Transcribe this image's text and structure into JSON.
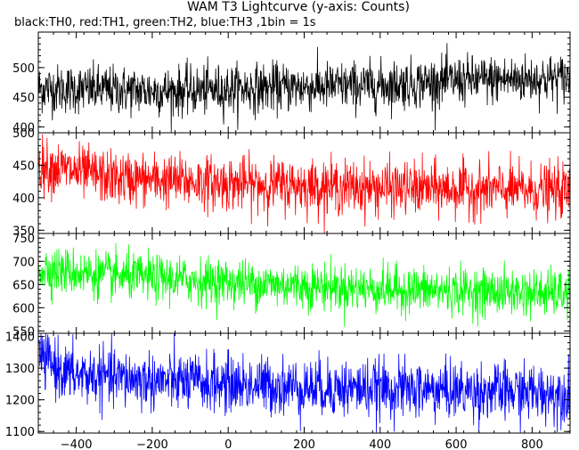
{
  "chart_data": {
    "type": "line",
    "title": "WAM T3 Lightcurve (y-axis: Counts)",
    "subtitle": "black:TH0, red:TH1, green:TH2, blue:TH3 ,1bin = 1s",
    "xlim": [
      -500,
      900
    ],
    "x_ticks": [
      -400,
      -200,
      0,
      200,
      400,
      600,
      800
    ],
    "x_tick_labels": [
      "−400",
      "−200",
      "0",
      "200",
      "400",
      "600",
      "800"
    ],
    "bin_seconds": 1,
    "grid": false,
    "panels": [
      {
        "series": "TH0",
        "color": "#000000",
        "ylim": [
          390,
          560
        ],
        "y_ticks": [
          400,
          450,
          500
        ],
        "trend_points": [
          [
            -500,
            465
          ],
          [
            -150,
            460
          ],
          [
            100,
            466
          ],
          [
            400,
            470
          ],
          [
            600,
            478
          ],
          [
            900,
            482
          ]
        ],
        "noise_range": 45
      },
      {
        "series": "TH1",
        "color": "#ff0000",
        "ylim": [
          345,
          500
        ],
        "y_ticks": [
          350,
          400,
          450,
          500
        ],
        "trend_points": [
          [
            -500,
            450
          ],
          [
            -300,
            430
          ],
          [
            0,
            422
          ],
          [
            400,
            415
          ],
          [
            900,
            410
          ]
        ],
        "noise_range": 45
      },
      {
        "series": "TH2",
        "color": "#00ff00",
        "ylim": [
          545,
          760
        ],
        "y_ticks": [
          550,
          600,
          650,
          700,
          750
        ],
        "trend_points": [
          [
            -500,
            685
          ],
          [
            -300,
            668
          ],
          [
            0,
            655
          ],
          [
            400,
            640
          ],
          [
            900,
            630
          ]
        ],
        "noise_range": 55
      },
      {
        "series": "TH3",
        "color": "#0000ff",
        "ylim": [
          1095,
          1410
        ],
        "y_ticks": [
          1100,
          1200,
          1300,
          1400
        ],
        "trend_points": [
          [
            -500,
            1340
          ],
          [
            -420,
            1280
          ],
          [
            -200,
            1260
          ],
          [
            200,
            1240
          ],
          [
            900,
            1220
          ]
        ],
        "noise_range": 100
      }
    ]
  }
}
